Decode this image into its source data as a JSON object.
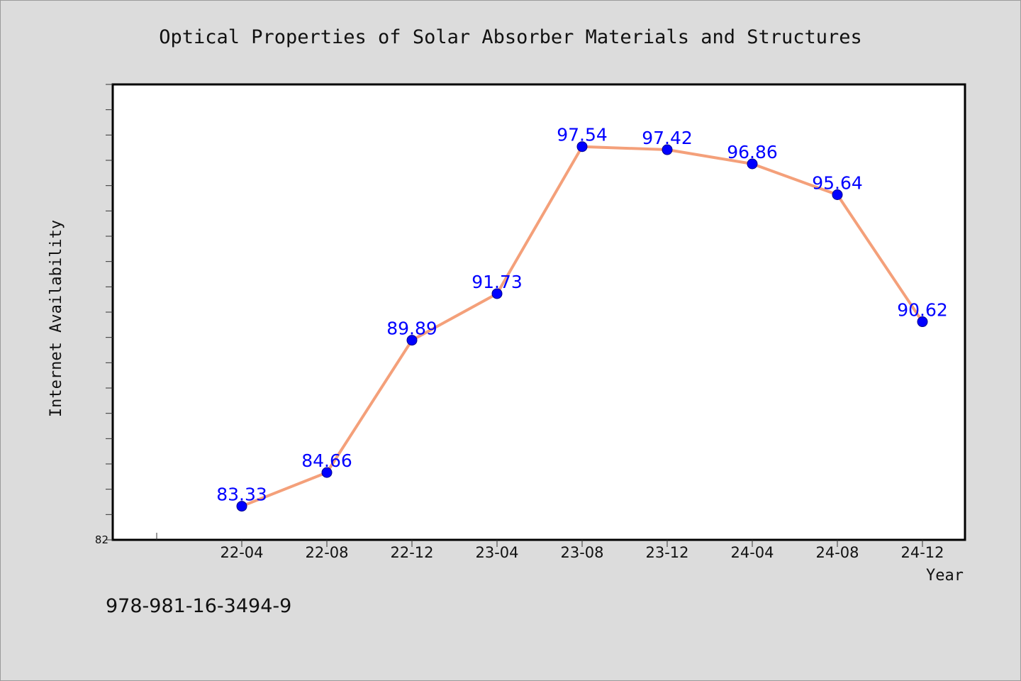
{
  "footer": {
    "isbn": "978-981-16-3494-9"
  },
  "colors": {
    "background": "#dcdcdc",
    "plot_background": "#ffffff",
    "line": "#f4a07a",
    "marker": "#0000ff",
    "data_label": "#0000ff"
  },
  "chart_data": {
    "type": "line",
    "title": "Optical Properties of Solar Absorber Materials and Structures",
    "xlabel": "Year",
    "ylabel": "Internet Availability",
    "categories": [
      "22-04",
      "22-08",
      "22-12",
      "23-04",
      "23-08",
      "23-12",
      "24-04",
      "24-08",
      "24-12"
    ],
    "series": [
      {
        "values": [
          83.33,
          84.66,
          89.89,
          91.73,
          97.54,
          97.42,
          96.86,
          95.64,
          90.62
        ]
      }
    ],
    "data_labels": [
      "83.33",
      "84.66",
      "89.89",
      "91.73",
      "97.54",
      "97.42",
      "96.86",
      "95.64",
      "90.62"
    ],
    "ylim": [
      82,
      100
    ],
    "y_tick_labels": [
      "82"
    ],
    "grid": false,
    "legend": "none"
  }
}
